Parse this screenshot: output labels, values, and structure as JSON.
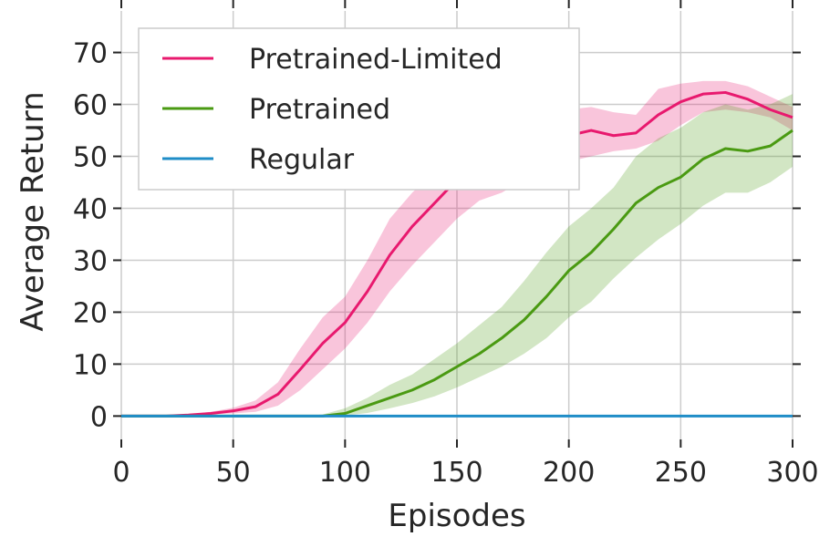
{
  "chart_data": {
    "type": "line",
    "xlabel": "Episodes",
    "ylabel": "Average Return",
    "xlim": [
      0,
      300
    ],
    "ylim": [
      -4.5,
      78
    ],
    "xticks": [
      0,
      50,
      100,
      150,
      200,
      250,
      300
    ],
    "yticks": [
      0,
      10,
      20,
      30,
      40,
      50,
      60,
      70
    ],
    "grid": true,
    "legend_position": "top-left",
    "x": [
      0,
      10,
      20,
      30,
      40,
      50,
      60,
      70,
      80,
      90,
      100,
      110,
      120,
      130,
      140,
      150,
      160,
      170,
      180,
      190,
      200,
      210,
      220,
      230,
      240,
      250,
      260,
      270,
      280,
      290,
      300
    ],
    "series": [
      {
        "name": "Pretrained-Limited",
        "color": "#e8196e",
        "values": [
          0,
          0,
          0,
          0.2,
          0.5,
          1.0,
          1.8,
          4.2,
          9,
          14,
          18,
          24,
          31,
          36.5,
          41,
          45.5,
          48.5,
          50.3,
          51.5,
          52.5,
          54,
          55,
          54,
          54.5,
          58,
          60.5,
          62,
          62.3,
          61,
          59,
          57.5
        ],
        "lower": [
          0,
          0,
          0,
          0.1,
          0.3,
          0.5,
          0.8,
          2.0,
          5,
          9,
          13,
          18,
          24,
          29,
          33.5,
          38,
          41.5,
          43,
          45.5,
          47.5,
          49,
          50,
          51,
          51.5,
          53,
          56,
          58.5,
          59,
          58.5,
          57.5,
          55
        ],
        "upper": [
          0,
          0,
          0,
          0.3,
          0.8,
          1.6,
          3.0,
          6.5,
          13,
          19,
          23,
          30,
          38,
          43,
          47,
          51,
          54,
          55.5,
          56.5,
          57.5,
          59,
          59.5,
          58.5,
          58,
          63,
          64,
          64.5,
          64.5,
          63.5,
          61.5,
          59.5
        ]
      },
      {
        "name": "Pretrained",
        "color": "#4a9a12",
        "values": [
          0,
          0,
          0,
          0,
          0,
          0,
          0,
          0,
          0,
          0,
          0.5,
          2,
          3.5,
          5,
          7,
          9.5,
          12,
          15,
          18.5,
          23,
          28,
          31.5,
          36,
          41,
          44,
          46,
          49.5,
          51.5,
          51,
          52,
          55
        ],
        "lower": [
          0,
          0,
          0,
          0,
          0,
          0,
          0,
          0,
          0,
          0,
          0.1,
          0.6,
          1.5,
          2.5,
          3.8,
          5.5,
          7.5,
          9.5,
          12,
          15,
          19,
          22,
          26.5,
          30.5,
          34,
          37,
          40.5,
          43,
          43,
          45,
          48
        ],
        "upper": [
          0,
          0,
          0,
          0,
          0,
          0,
          0,
          0,
          0,
          0.3,
          1.5,
          3.5,
          6,
          8,
          11,
          14,
          17.5,
          21,
          26,
          31.5,
          36.5,
          40,
          44,
          50,
          53.5,
          55.5,
          58.5,
          60,
          59,
          60,
          62
        ]
      },
      {
        "name": "Regular",
        "color": "#1f8dc7",
        "values": [
          0,
          0,
          0,
          0,
          0,
          0,
          0,
          0,
          0,
          0,
          0,
          0,
          0,
          0,
          0,
          0,
          0,
          0,
          0,
          0,
          0,
          0,
          0,
          0,
          0,
          0,
          0,
          0,
          0,
          0,
          0
        ]
      }
    ]
  }
}
